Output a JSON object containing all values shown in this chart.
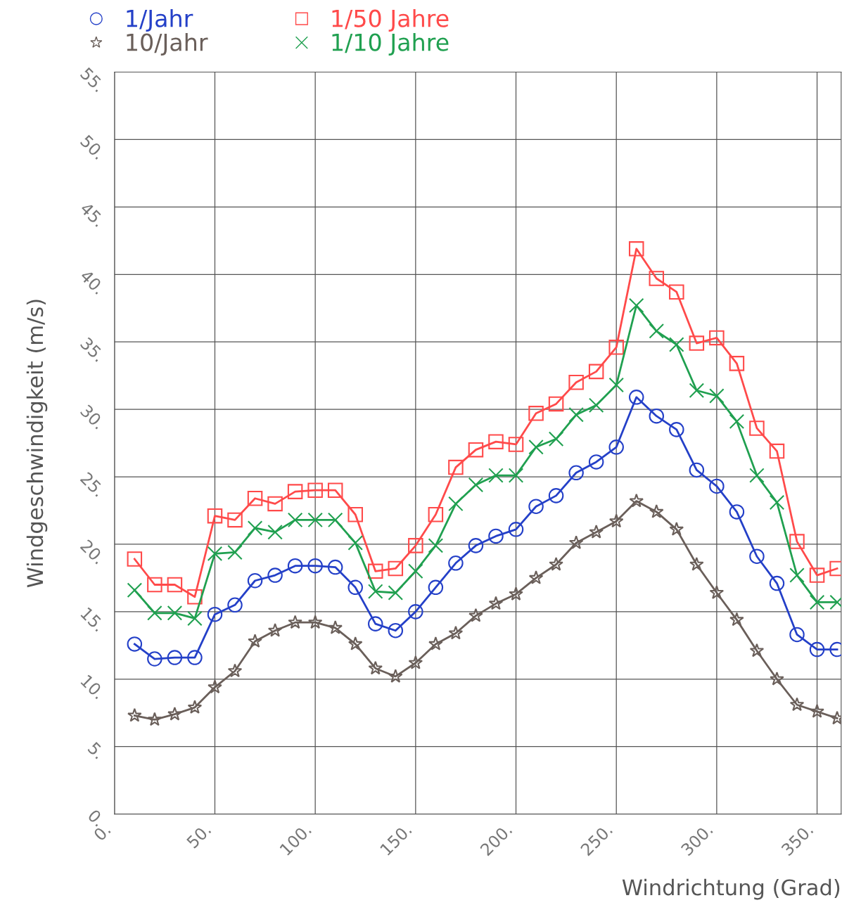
{
  "chart_data": {
    "type": "line",
    "xlabel": "Windrichtung (Grad)",
    "ylabel": "Windgeschwindigkeit (m/s)",
    "x": [
      10,
      20,
      30,
      40,
      50,
      60,
      70,
      80,
      90,
      100,
      110,
      120,
      130,
      140,
      150,
      160,
      170,
      180,
      190,
      200,
      210,
      220,
      230,
      240,
      250,
      260,
      270,
      280,
      290,
      300,
      310,
      320,
      330,
      340,
      350,
      360
    ],
    "series": [
      {
        "name": "1/Jahr",
        "color": "#2440c8",
        "marker": "circle",
        "values": [
          12.6,
          11.5,
          11.6,
          11.6,
          14.8,
          15.5,
          17.3,
          17.7,
          18.4,
          18.4,
          18.3,
          16.8,
          14.1,
          13.6,
          15.0,
          16.8,
          18.6,
          19.9,
          20.6,
          21.1,
          22.8,
          23.6,
          25.3,
          26.1,
          27.2,
          30.9,
          29.5,
          28.5,
          25.5,
          24.3,
          22.4,
          19.1,
          17.1,
          13.3,
          12.2,
          12.2
        ]
      },
      {
        "name": "10/Jahr",
        "color": "#6a5f5a",
        "marker": "star",
        "values": [
          7.3,
          7.0,
          7.4,
          7.9,
          9.4,
          10.6,
          12.8,
          13.6,
          14.2,
          14.2,
          13.8,
          12.6,
          10.8,
          10.2,
          11.2,
          12.6,
          13.4,
          14.7,
          15.6,
          16.3,
          17.5,
          18.5,
          20.1,
          20.9,
          21.7,
          23.2,
          22.4,
          21.1,
          18.5,
          16.4,
          14.4,
          12.1,
          10.0,
          8.1,
          7.6,
          7.1
        ]
      },
      {
        "name": "1/50 Jahre",
        "color": "#ff4a4a",
        "marker": "square",
        "values": [
          18.9,
          17.0,
          17.0,
          16.1,
          22.1,
          21.8,
          23.4,
          23.0,
          23.9,
          24.0,
          24.0,
          22.2,
          18.0,
          18.2,
          19.9,
          22.2,
          25.7,
          27.0,
          27.6,
          27.4,
          29.7,
          30.4,
          32.0,
          32.8,
          34.6,
          41.9,
          39.7,
          38.7,
          34.9,
          35.3,
          33.4,
          28.6,
          26.9,
          20.2,
          17.7,
          18.2
        ]
      },
      {
        "name": "1/10 Jahre",
        "color": "#20a050",
        "marker": "cross",
        "values": [
          16.6,
          14.9,
          14.9,
          14.5,
          19.3,
          19.4,
          21.2,
          20.9,
          21.8,
          21.8,
          21.8,
          20.1,
          16.5,
          16.4,
          18.0,
          19.9,
          23.0,
          24.4,
          25.1,
          25.1,
          27.2,
          27.8,
          29.6,
          30.3,
          31.8,
          37.7,
          35.8,
          34.8,
          31.4,
          31.0,
          29.1,
          25.1,
          23.1,
          17.7,
          15.7,
          15.7
        ]
      }
    ],
    "xlim": [
      0,
      362
    ],
    "xticks": [
      {
        "value": 0,
        "label": "0."
      },
      {
        "value": 50,
        "label": "50."
      },
      {
        "value": 100,
        "label": "100."
      },
      {
        "value": 150,
        "label": "150."
      },
      {
        "value": 200,
        "label": "200."
      },
      {
        "value": 250,
        "label": "250."
      },
      {
        "value": 300,
        "label": "300."
      },
      {
        "value": 350,
        "label": "350."
      }
    ],
    "ylim": [
      0,
      55
    ],
    "yticks": [
      {
        "value": 0,
        "label": "0."
      },
      {
        "value": 5,
        "label": "5."
      },
      {
        "value": 10,
        "label": "10."
      },
      {
        "value": 15,
        "label": "15."
      },
      {
        "value": 20,
        "label": "20."
      },
      {
        "value": 25,
        "label": "25."
      },
      {
        "value": 30,
        "label": "30."
      },
      {
        "value": 35,
        "label": "35."
      },
      {
        "value": 40,
        "label": "40."
      },
      {
        "value": 45,
        "label": "45."
      },
      {
        "value": 50,
        "label": "50."
      },
      {
        "value": 55,
        "label": "55."
      }
    ],
    "grid": true,
    "legend": "top left",
    "line_style": "solid"
  }
}
